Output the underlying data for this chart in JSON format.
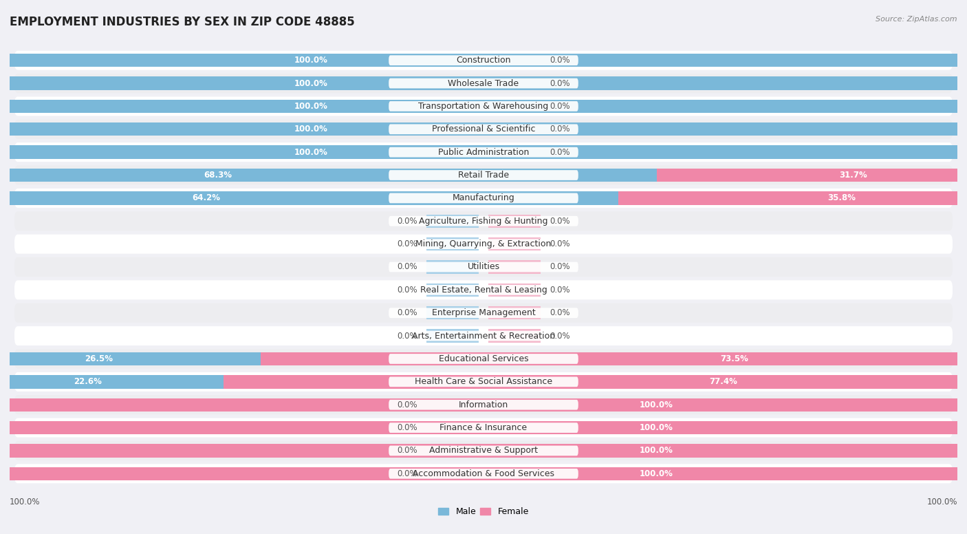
{
  "title": "EMPLOYMENT INDUSTRIES BY SEX IN ZIP CODE 48885",
  "source": "Source: ZipAtlas.com",
  "categories": [
    "Construction",
    "Wholesale Trade",
    "Transportation & Warehousing",
    "Professional & Scientific",
    "Public Administration",
    "Retail Trade",
    "Manufacturing",
    "Agriculture, Fishing & Hunting",
    "Mining, Quarrying, & Extraction",
    "Utilities",
    "Real Estate, Rental & Leasing",
    "Enterprise Management",
    "Arts, Entertainment & Recreation",
    "Educational Services",
    "Health Care & Social Assistance",
    "Information",
    "Finance & Insurance",
    "Administrative & Support",
    "Accommodation & Food Services"
  ],
  "male_pct": [
    100.0,
    100.0,
    100.0,
    100.0,
    100.0,
    68.3,
    64.2,
    0.0,
    0.0,
    0.0,
    0.0,
    0.0,
    0.0,
    26.5,
    22.6,
    0.0,
    0.0,
    0.0,
    0.0
  ],
  "female_pct": [
    0.0,
    0.0,
    0.0,
    0.0,
    0.0,
    31.7,
    35.8,
    0.0,
    0.0,
    0.0,
    0.0,
    0.0,
    0.0,
    73.5,
    77.4,
    100.0,
    100.0,
    100.0,
    100.0
  ],
  "male_color": "#7ab8d9",
  "female_color": "#f087a8",
  "male_color_light": "#a8d0e8",
  "female_color_light": "#f4b8cc",
  "bg_row_color": "#e8e8ec",
  "bg_alt_color": "#f5f5f7",
  "title_fontsize": 12,
  "label_fontsize": 9,
  "pct_fontsize": 8.5,
  "source_fontsize": 8
}
